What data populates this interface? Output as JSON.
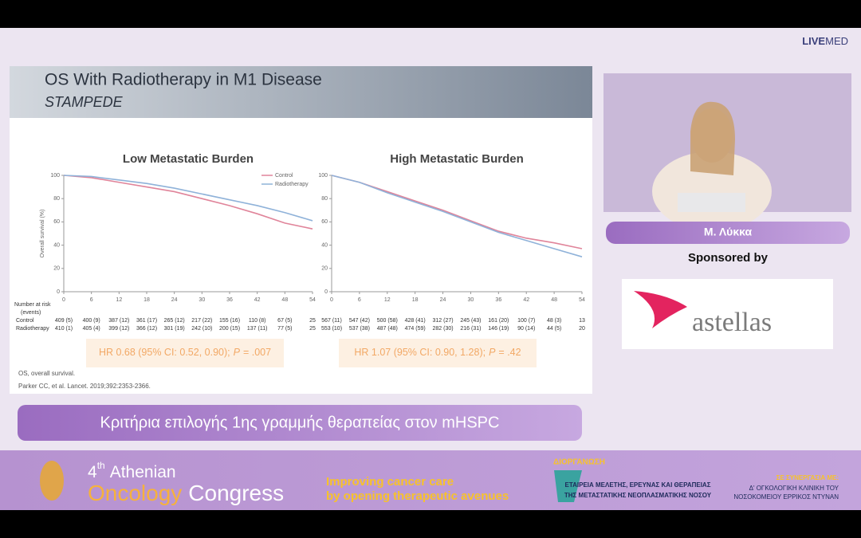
{
  "brand": {
    "live": "LIVE",
    "med": "MED"
  },
  "slide": {
    "title": "OS With Radiotherapy in M1 Disease",
    "subtitle": "STAMPEDE",
    "footnote": "OS, overall survival.",
    "reference": "Parker CC, et al. Lancet. 2019;392:2353-2366."
  },
  "chart_data": [
    {
      "type": "line",
      "title": "Low Metastatic Burden",
      "y_label": "Overall survival (%)",
      "x": [
        0,
        6,
        12,
        18,
        24,
        30,
        36,
        42,
        48,
        54
      ],
      "xlim": [
        0,
        54
      ],
      "xticks": [
        0,
        6,
        12,
        18,
        24,
        30,
        36,
        42,
        48,
        54
      ],
      "ylim": [
        0,
        100
      ],
      "yticks": [
        0,
        20,
        40,
        60,
        80,
        100
      ],
      "legend": "top-right",
      "series": [
        {
          "name": "Control",
          "color": "#e0849a",
          "values": [
            100,
            98,
            94,
            90,
            86,
            80,
            74,
            67,
            59,
            54
          ]
        },
        {
          "name": "Radiotherapy",
          "color": "#8fb2d9",
          "values": [
            100,
            99,
            96,
            93,
            89,
            84,
            79,
            74,
            68,
            61
          ]
        }
      ],
      "risk_label": "Number at risk",
      "risk_sublabel": "(events)",
      "risk_rows": [
        "Control",
        "Radiotherapy"
      ],
      "at_risk": [
        [
          "409 (5)",
          "400 (9)",
          "387 (12)",
          "361 (17)",
          "265 (12)",
          "217 (22)",
          "155 (16)",
          "110 (8)",
          "67 (5)",
          "25"
        ],
        [
          "410 (1)",
          "405 (4)",
          "399 (12)",
          "366 (12)",
          "301 (19)",
          "242 (10)",
          "200 (15)",
          "137 (11)",
          "77 (5)",
          "25"
        ]
      ],
      "hr": {
        "pre": "HR 0.68 (95% CI: 0.52, 0.90);",
        "p": "P",
        "post": "= .007"
      }
    },
    {
      "type": "line",
      "title": "High Metastatic Burden",
      "x": [
        0,
        6,
        12,
        18,
        24,
        30,
        36,
        42,
        48,
        54
      ],
      "xlim": [
        0,
        54
      ],
      "xticks": [
        0,
        6,
        12,
        18,
        24,
        30,
        36,
        42,
        48,
        54
      ],
      "ylim": [
        0,
        100
      ],
      "yticks": [
        0,
        20,
        40,
        60,
        80,
        100
      ],
      "series": [
        {
          "name": "Control",
          "color": "#e0849a",
          "values": [
            100,
            94,
            86,
            78,
            70,
            61,
            52,
            46,
            42,
            37
          ]
        },
        {
          "name": "Radiotherapy",
          "color": "#8fb2d9",
          "values": [
            100,
            94,
            85,
            77,
            69,
            60,
            51,
            44,
            37,
            30
          ]
        }
      ],
      "at_risk": [
        [
          "567 (11)",
          "547 (42)",
          "500 (58)",
          "428 (41)",
          "312 (27)",
          "245 (43)",
          "161 (20)",
          "100 (7)",
          "48 (3)",
          "13"
        ],
        [
          "553 (10)",
          "537 (38)",
          "487 (48)",
          "474 (59)",
          "282 (30)",
          "216 (31)",
          "146 (19)",
          "90 (14)",
          "44 (5)",
          "20"
        ]
      ],
      "hr": {
        "pre": "HR 1.07 (95% CI: 0.90, 1.28);",
        "p": "P",
        "post": "= .42"
      }
    }
  ],
  "speaker": {
    "name": "Μ. Λύκκα",
    "sponsored_by": "Sponsored by",
    "sponsor": "astellas"
  },
  "caption": "Κριτήρια επιλογής 1ης γραμμής θεραπείας στον mHSPC",
  "banner": {
    "number": "4",
    "ordinal": "th",
    "athenian": "Athenian",
    "oncology": "Oncology",
    "congress": "Congress",
    "tagline": [
      "Improving cancer care",
      "by opening therapeutic avenues"
    ],
    "organizer_label": "ΔΙΟΡΓΑΝΩΣΗ",
    "organizer": [
      "ΕΤΑΙΡΕΙΑ ΜΕΛΕΤΗΣ, ΕΡΕΥΝΑΣ ΚΑΙ ΘΕΡΑΠΕΙΑΣ",
      "ΤΗΣ ΜΕΤΑΣΤΑΤΙΚΗΣ ΝΕΟΠΛΑΣΜΑΤΙΚΗΣ ΝΟΣΟΥ"
    ],
    "partner_label": "ΣΕ ΣΥΝΕΡΓΑΣΙΑ ΜΕ:",
    "partner": [
      "Δ' ΟΓΚΟΛΟΓΙΚΗ ΚΛΙΝΙΚΗ ΤΟΥ",
      "ΝΟΣΟΚΟΜΕΙΟΥ ΕΡΡΙΚΟΣ ΝΤΥΝΑΝ"
    ]
  }
}
